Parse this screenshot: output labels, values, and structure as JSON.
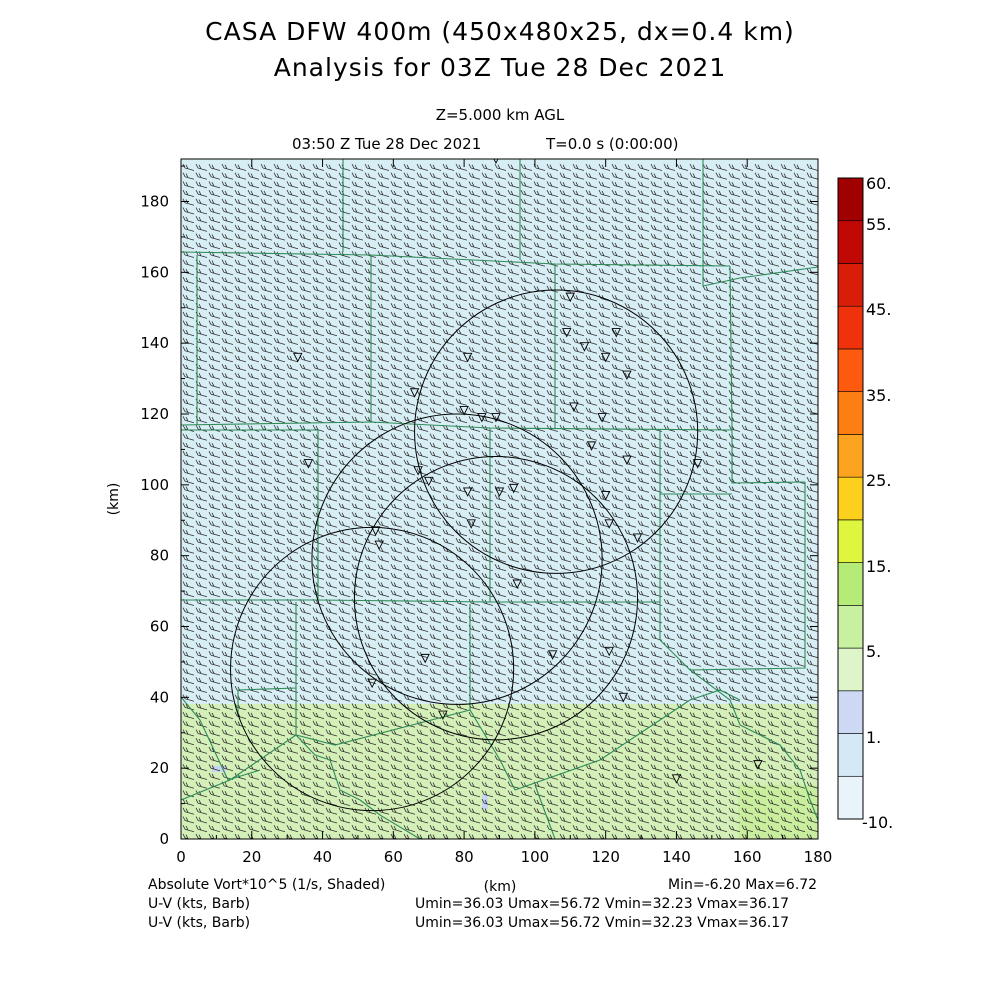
{
  "header": {
    "title_line1": "CASA DFW 400m (450x480x25, dx=0.4 km)",
    "title_line2": "Analysis for 03Z Tue 28 Dec 2021",
    "level": "Z=5.000 km AGL",
    "valid_time": "03:50 Z Tue 28 Dec 2021",
    "forecast_time": "T=0.0 s (0:00:00)"
  },
  "axes": {
    "x_ticks": [
      "0",
      "20",
      "40",
      "60",
      "80",
      "100",
      "120",
      "140",
      "160",
      "180"
    ],
    "y_ticks": [
      "0",
      "20",
      "40",
      "60",
      "80",
      "100",
      "120",
      "140",
      "160",
      "180"
    ],
    "x_label": "(km)",
    "y_label": "(km)"
  },
  "colorbar": {
    "labels": [
      "60.",
      "55.",
      "45.",
      "35.",
      "25.",
      "15.",
      "5.",
      "1.",
      "-10."
    ],
    "colors": [
      "#e8f4fa",
      "#d4e8f6",
      "#ccd8f4",
      "#ddf5c8",
      "#c7f0a0",
      "#b5ec77",
      "#dff53e",
      "#fcd01c",
      "#fca420",
      "#fd7e13",
      "#fd5a10",
      "#f0320c",
      "#d81e08",
      "#c00804",
      "#a00000"
    ]
  },
  "footer": {
    "field1": "Absolute Vort*10^5 (1/s, Shaded)",
    "field1_stats": "Min=-6.20 Max=6.72",
    "field2": "U-V (kts, Barb)",
    "field2_stats": "Umin=36.03 Umax=56.72 Vmin=32.23 Vmax=36.17",
    "field3": "U-V (kts, Barb)",
    "field3_stats": "Umin=36.03 Umax=56.72 Vmin=32.23 Vmax=36.17"
  },
  "map": {
    "background_upper": "#d8eef5",
    "background_lower": "#d4f0b8",
    "county_line_color": "#2e8b57",
    "radar_ranges": [
      {
        "cx_km": 78,
        "cy_km": 79,
        "r_km": 41
      },
      {
        "cx_km": 89,
        "cy_km": 68,
        "r_km": 40
      },
      {
        "cx_km": 106,
        "cy_km": 115,
        "r_km": 40
      },
      {
        "cx_km": 54,
        "cy_km": 48,
        "r_km": 40
      }
    ],
    "stations_km": [
      [
        89,
        192
      ],
      [
        110,
        153
      ],
      [
        109,
        143
      ],
      [
        123,
        143
      ],
      [
        114,
        139
      ],
      [
        120,
        136
      ],
      [
        81,
        136
      ],
      [
        126,
        131
      ],
      [
        33,
        136
      ],
      [
        66,
        126
      ],
      [
        80,
        121
      ],
      [
        85,
        119
      ],
      [
        89,
        119
      ],
      [
        111,
        122
      ],
      [
        119,
        119
      ],
      [
        116,
        111
      ],
      [
        126,
        107
      ],
      [
        146,
        106
      ],
      [
        36,
        106
      ],
      [
        67,
        104
      ],
      [
        70,
        101
      ],
      [
        81,
        98
      ],
      [
        90,
        98
      ],
      [
        94,
        99
      ],
      [
        120,
        97
      ],
      [
        82,
        89
      ],
      [
        121,
        89
      ],
      [
        129,
        85
      ],
      [
        55,
        87
      ],
      [
        56,
        83
      ],
      [
        95,
        72
      ],
      [
        69,
        51
      ],
      [
        105,
        52
      ],
      [
        121,
        53
      ],
      [
        54,
        44
      ],
      [
        125,
        40
      ],
      [
        74,
        35
      ],
      [
        140,
        17
      ],
      [
        163,
        21
      ]
    ]
  }
}
